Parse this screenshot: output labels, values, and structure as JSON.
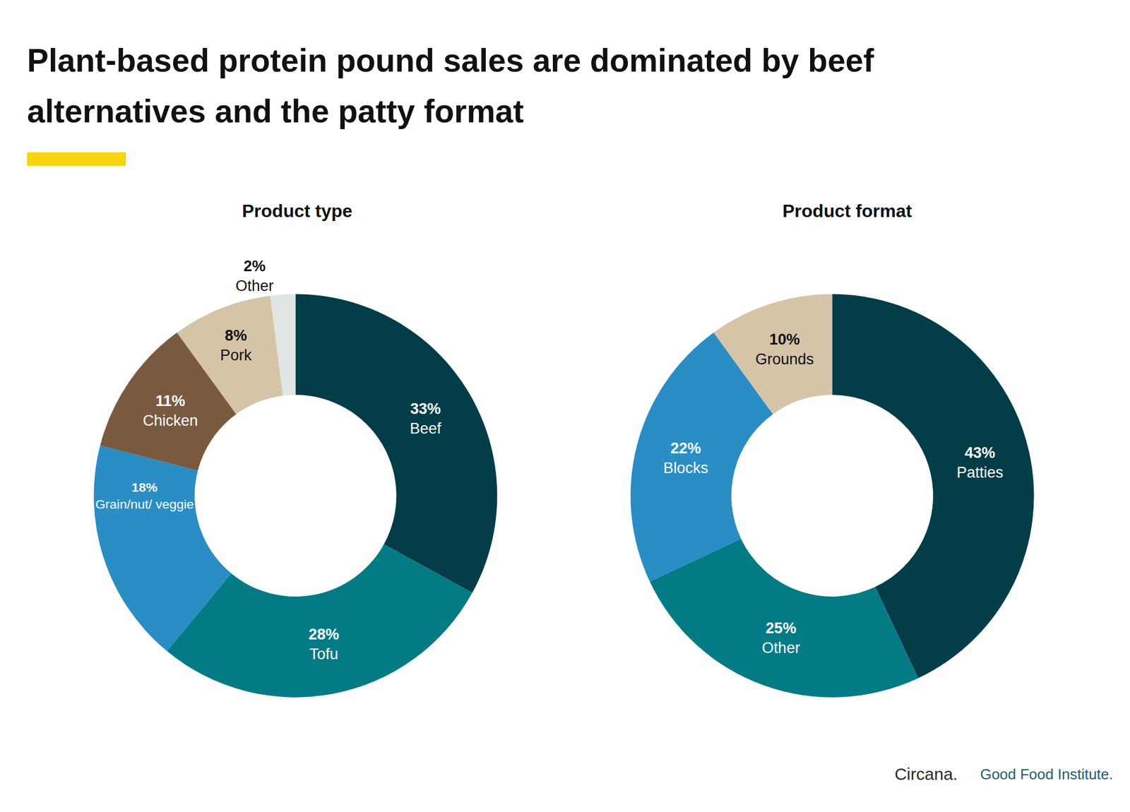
{
  "title": "Plant-based protein pound sales are dominated by beef alternatives and the patty format",
  "chart_data": [
    {
      "type": "pie",
      "title": "Product type",
      "categories": [
        "Beef",
        "Tofu",
        "Grain/nut/ veggie",
        "Chicken",
        "Pork",
        "Other"
      ],
      "values": [
        33,
        28,
        18,
        11,
        8,
        2
      ],
      "value_labels": [
        "33%",
        "28%",
        "18%",
        "11%",
        "8%",
        "2%"
      ],
      "colors": [
        "#033d47",
        "#037b85",
        "#2a8dc4",
        "#7a5a3f",
        "#d5c4a8",
        "#e1e5e6"
      ],
      "data_labels": true
    },
    {
      "type": "pie",
      "title": "Product format",
      "categories": [
        "Patties",
        "Other",
        "Blocks",
        "Grounds"
      ],
      "values": [
        43,
        25,
        22,
        10
      ],
      "value_labels": [
        "43%",
        "25%",
        "22%",
        "10%"
      ],
      "colors": [
        "#033d47",
        "#037b85",
        "#2a8dc4",
        "#d5c4a8"
      ],
      "data_labels": true
    }
  ],
  "logos": [
    "Circana.",
    "Good Food Institute."
  ]
}
